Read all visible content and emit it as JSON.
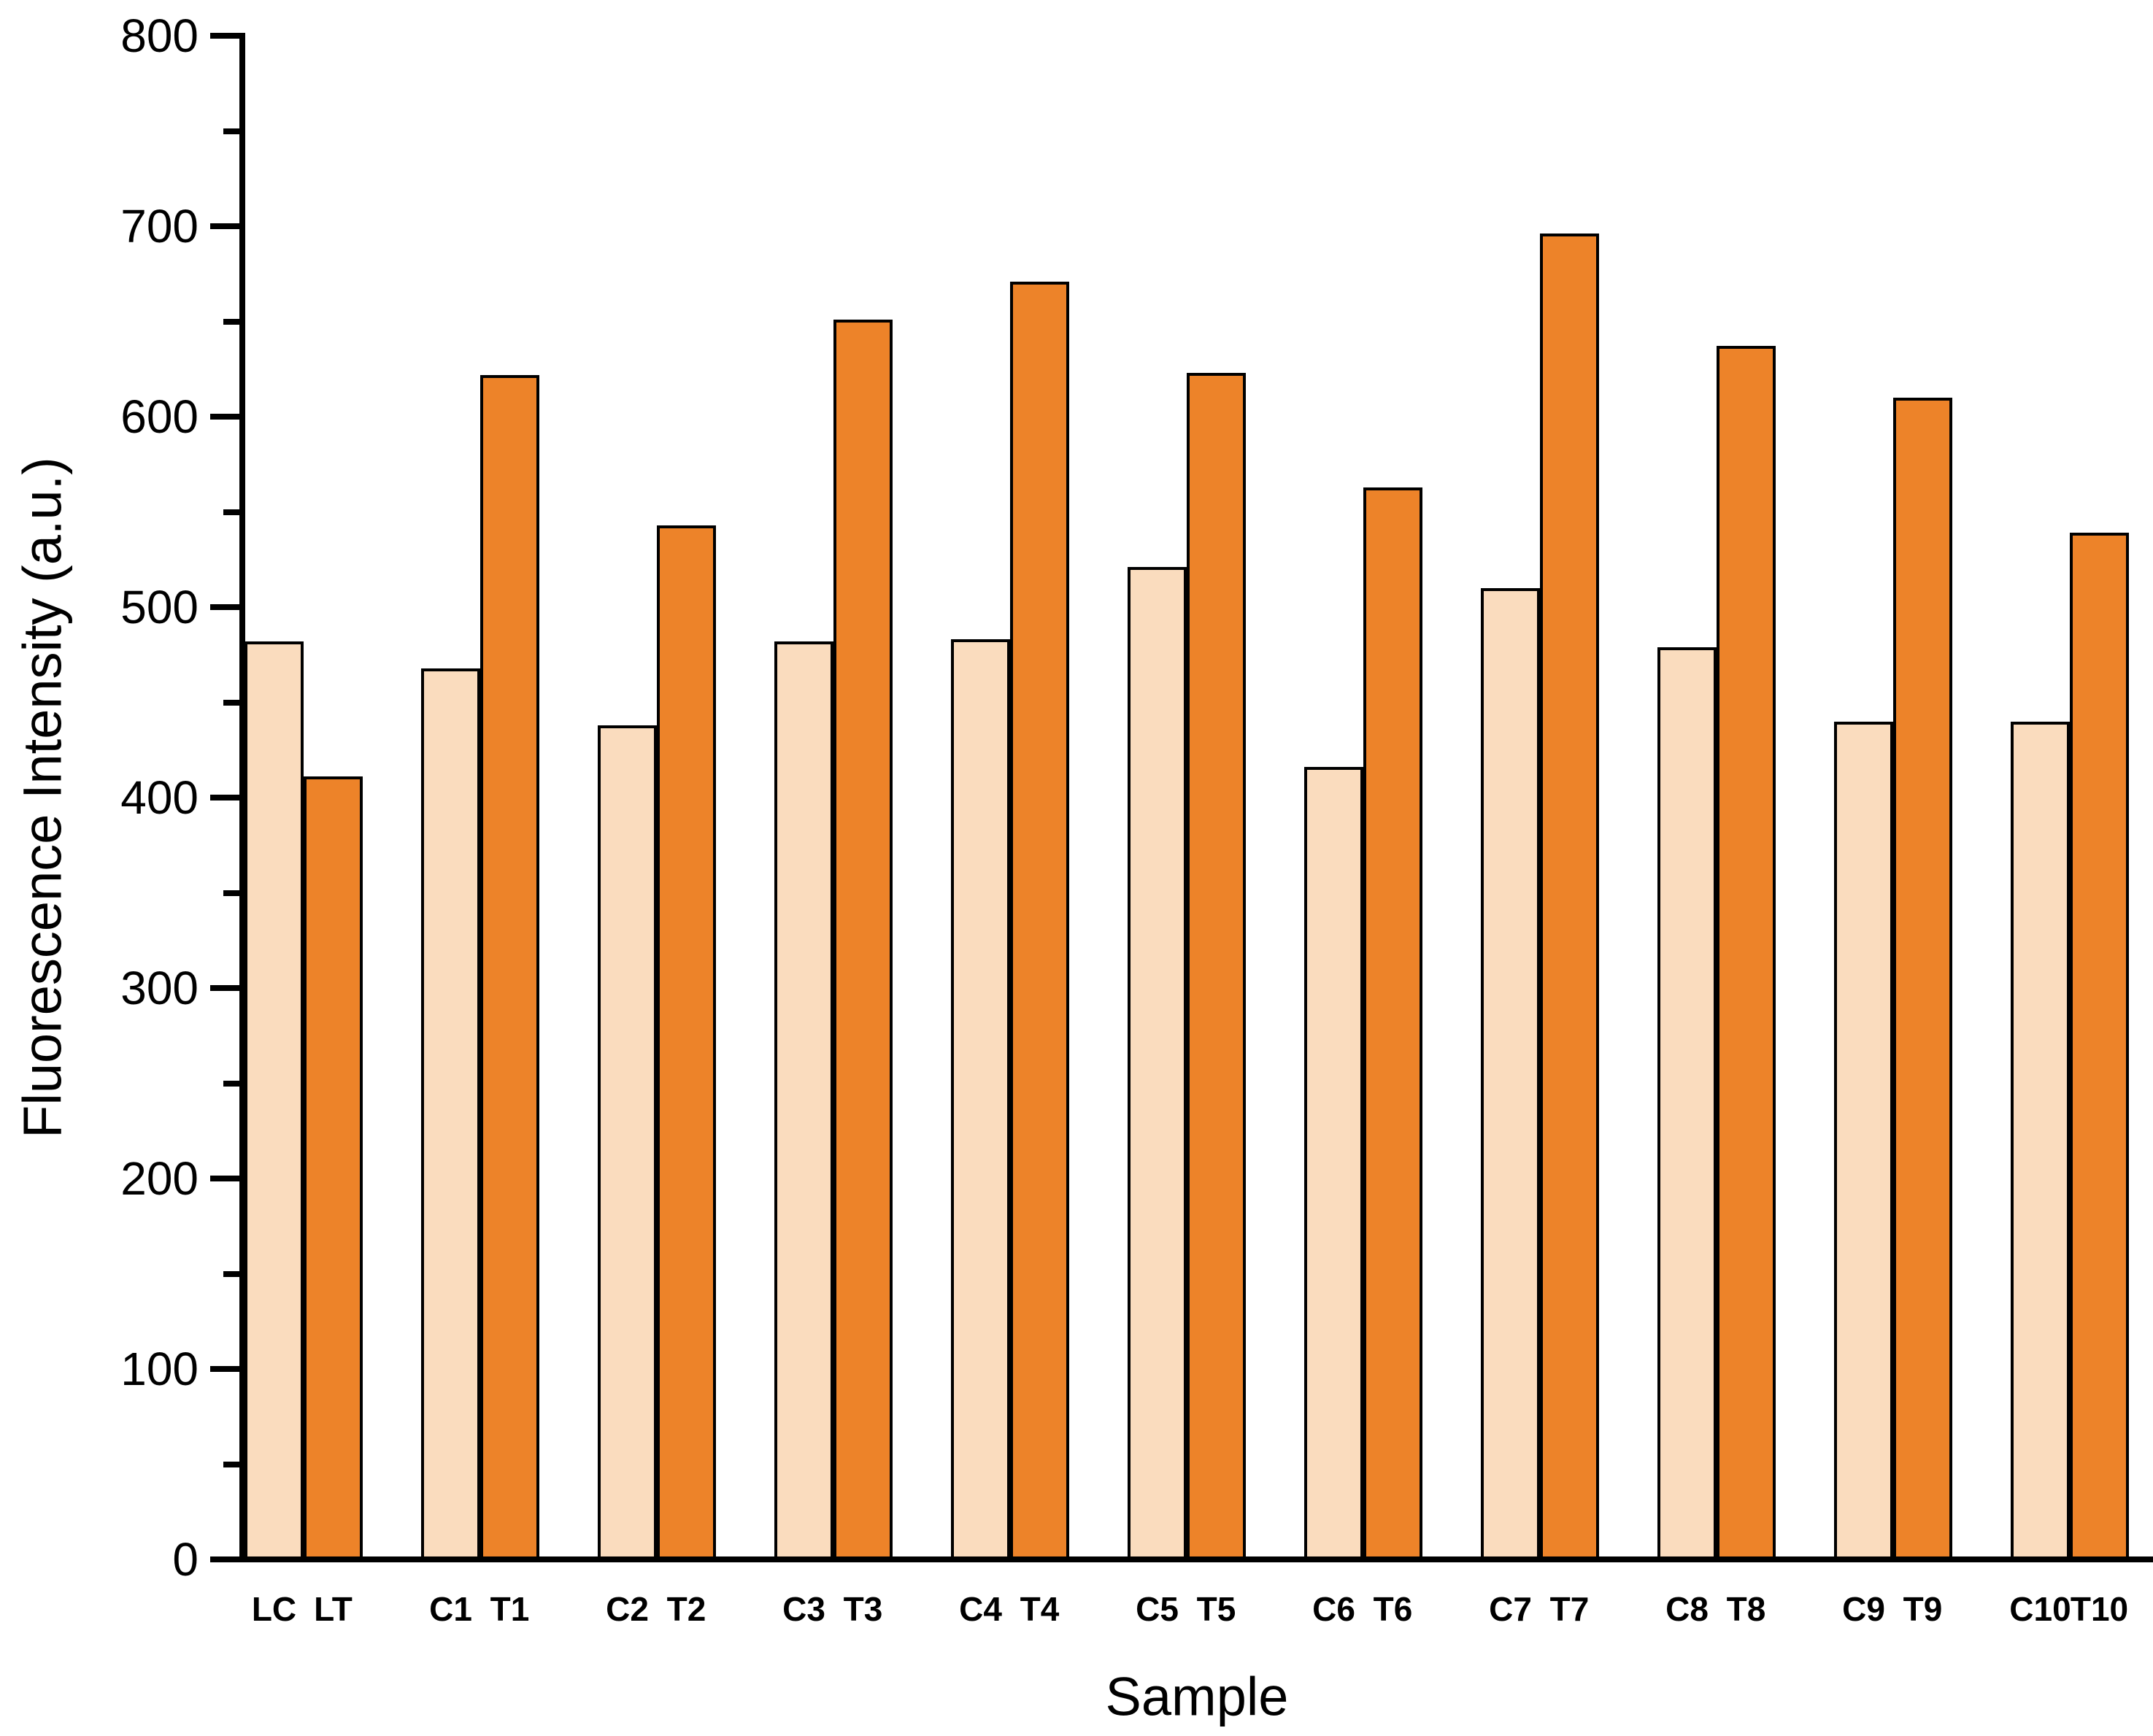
{
  "chart_data": {
    "type": "bar",
    "title": "",
    "xlabel": "Sample",
    "ylabel": "Fluorescence Intensity (a.u.)",
    "ylim": [
      0,
      800
    ],
    "y_major_step": 100,
    "y_minor_step": 50,
    "y_tick_labels": [
      "0",
      "100",
      "200",
      "300",
      "400",
      "500",
      "600",
      "700",
      "800"
    ],
    "grid": false,
    "legend_position": "none",
    "categories": [
      [
        "LC",
        "LT"
      ],
      [
        "C1",
        "T1"
      ],
      [
        "C2",
        "T2"
      ],
      [
        "C3",
        "T3"
      ],
      [
        "C4",
        "T4"
      ],
      [
        "C5",
        "T5"
      ],
      [
        "C6",
        "T6"
      ],
      [
        "C7",
        "T7"
      ],
      [
        "C8",
        "T8"
      ],
      [
        "C9",
        "T9"
      ],
      [
        "C10",
        "T10"
      ]
    ],
    "series": [
      {
        "name": "C",
        "color": "#FADCBE",
        "values": [
          482,
          468,
          438,
          482,
          483,
          521,
          416,
          510,
          479,
          440,
          440
        ]
      },
      {
        "name": "T",
        "color": "#ED8329",
        "values": [
          411,
          622,
          543,
          651,
          671,
          623,
          563,
          696,
          637,
          610,
          539
        ]
      }
    ],
    "bar_outline_color": "#000000",
    "axis_color": "#000000",
    "background_color": "#FFFFFF"
  }
}
